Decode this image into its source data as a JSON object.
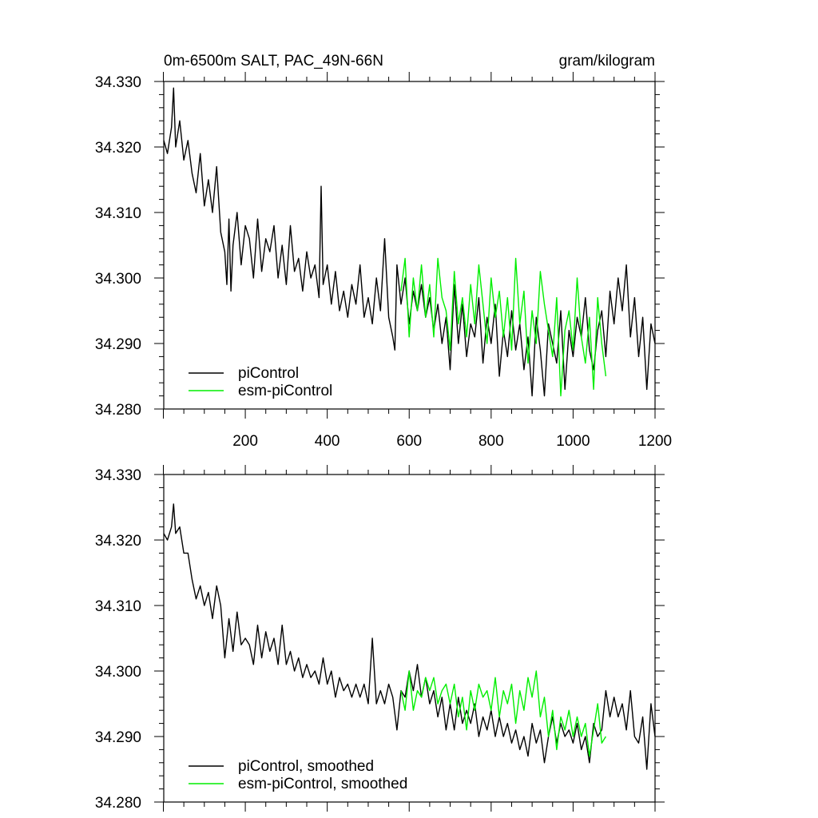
{
  "header": {
    "title": "0m-6500m SALT, PAC_49N-66N",
    "units": "gram/kilogram"
  },
  "colors": {
    "piControl": "#000000",
    "esm_piControl": "#00ee00"
  },
  "chart_data": [
    {
      "type": "line",
      "xlim": [
        1,
        1200
      ],
      "ylim": [
        34.28,
        34.33
      ],
      "xticks": [
        200,
        400,
        600,
        800,
        1000,
        1200
      ],
      "xtick_labels": [
        "200",
        "400",
        "600",
        "800",
        "1000",
        "1200"
      ],
      "yticks": [
        34.28,
        34.29,
        34.3,
        34.31,
        34.32,
        34.33
      ],
      "ytick_labels": [
        "34.280",
        "34.290",
        "34.300",
        "34.310",
        "34.320",
        "34.330"
      ],
      "legend_position": "bottom-left",
      "series": [
        {
          "name": "piControl",
          "color": "#000000",
          "x": [
            1,
            10,
            20,
            25,
            30,
            40,
            50,
            60,
            70,
            80,
            90,
            100,
            110,
            120,
            130,
            140,
            150,
            155,
            160,
            165,
            170,
            180,
            190,
            200,
            210,
            220,
            230,
            240,
            250,
            260,
            270,
            280,
            290,
            300,
            310,
            320,
            330,
            340,
            350,
            360,
            370,
            380,
            385,
            390,
            400,
            410,
            420,
            430,
            440,
            450,
            460,
            470,
            480,
            490,
            500,
            510,
            520,
            530,
            540,
            550,
            560,
            565,
            570,
            580,
            590,
            600,
            610,
            620,
            630,
            640,
            650,
            660,
            670,
            680,
            690,
            700,
            710,
            720,
            730,
            740,
            750,
            760,
            770,
            780,
            790,
            800,
            810,
            820,
            830,
            840,
            850,
            860,
            870,
            880,
            890,
            900,
            910,
            920,
            930,
            940,
            950,
            960,
            970,
            980,
            990,
            1000,
            1010,
            1020,
            1030,
            1040,
            1050,
            1060,
            1070,
            1080,
            1090,
            1100,
            1110,
            1120,
            1130,
            1140,
            1150,
            1160,
            1170,
            1180,
            1190,
            1200
          ],
          "values": [
            34.321,
            34.319,
            34.323,
            34.329,
            34.32,
            34.324,
            34.318,
            34.321,
            34.316,
            34.313,
            34.319,
            34.311,
            34.315,
            34.31,
            34.317,
            34.307,
            34.304,
            34.299,
            34.309,
            34.298,
            34.305,
            34.31,
            34.302,
            34.308,
            34.306,
            34.3,
            34.309,
            34.301,
            34.306,
            34.304,
            34.308,
            34.3,
            34.305,
            34.299,
            34.308,
            34.301,
            34.303,
            34.298,
            34.304,
            34.3,
            34.302,
            34.297,
            34.314,
            34.299,
            34.302,
            34.296,
            34.301,
            34.295,
            34.298,
            34.294,
            34.299,
            34.296,
            34.302,
            34.294,
            34.297,
            34.293,
            34.3,
            34.295,
            34.306,
            34.294,
            34.291,
            34.289,
            34.302,
            34.296,
            34.3,
            34.293,
            34.298,
            34.295,
            34.299,
            34.294,
            34.297,
            34.292,
            34.296,
            34.29,
            34.294,
            34.286,
            34.299,
            34.29,
            34.296,
            34.288,
            34.293,
            34.291,
            34.297,
            34.287,
            34.294,
            34.29,
            34.296,
            34.285,
            34.292,
            34.288,
            34.295,
            34.289,
            34.293,
            34.286,
            34.291,
            34.282,
            34.294,
            34.289,
            34.282,
            34.293,
            34.29,
            34.287,
            34.295,
            34.283,
            34.292,
            34.288,
            34.294,
            34.291,
            34.297,
            34.289,
            34.286,
            34.292,
            34.295,
            34.288,
            34.298,
            34.293,
            34.3,
            34.295,
            34.302,
            34.291,
            34.297,
            34.288,
            34.294,
            34.283,
            34.293,
            34.29
          ]
        },
        {
          "name": "esm-piControl",
          "color": "#00ee00",
          "x": [
            580,
            590,
            600,
            610,
            620,
            630,
            640,
            650,
            660,
            670,
            680,
            690,
            700,
            710,
            720,
            730,
            740,
            750,
            760,
            770,
            780,
            790,
            800,
            810,
            820,
            830,
            840,
            850,
            860,
            870,
            880,
            890,
            900,
            910,
            920,
            930,
            940,
            950,
            960,
            970,
            980,
            990,
            1000,
            1010,
            1020,
            1030,
            1040,
            1050,
            1060,
            1070,
            1080
          ],
          "values": [
            34.298,
            34.303,
            34.291,
            34.3,
            34.295,
            34.302,
            34.294,
            34.299,
            34.291,
            34.303,
            34.297,
            34.295,
            34.289,
            34.301,
            34.293,
            34.297,
            34.291,
            34.299,
            34.293,
            34.302,
            34.296,
            34.29,
            34.3,
            34.294,
            34.298,
            34.291,
            34.297,
            34.289,
            34.303,
            34.293,
            34.298,
            34.287,
            34.295,
            34.29,
            34.301,
            34.296,
            34.292,
            34.288,
            34.297,
            34.282,
            34.292,
            34.295,
            34.289,
            34.3,
            34.291,
            34.287,
            34.294,
            34.283,
            34.297,
            34.29,
            34.285
          ]
        }
      ]
    },
    {
      "type": "line",
      "xlim": [
        1,
        1200
      ],
      "ylim": [
        34.28,
        34.33
      ],
      "yticks": [
        34.28,
        34.29,
        34.3,
        34.31,
        34.32,
        34.33
      ],
      "ytick_labels": [
        "34.280",
        "34.290",
        "34.300",
        "34.310",
        "34.320",
        "34.330"
      ],
      "legend_position": "bottom-left",
      "series": [
        {
          "name": "piControl, smoothed",
          "color": "#000000",
          "x": [
            1,
            10,
            20,
            25,
            30,
            40,
            50,
            60,
            70,
            80,
            90,
            100,
            110,
            120,
            130,
            140,
            150,
            160,
            170,
            180,
            190,
            200,
            210,
            220,
            230,
            240,
            250,
            260,
            270,
            280,
            290,
            300,
            310,
            320,
            330,
            340,
            350,
            360,
            370,
            380,
            390,
            400,
            410,
            420,
            430,
            440,
            450,
            460,
            470,
            480,
            490,
            500,
            510,
            520,
            530,
            540,
            550,
            560,
            570,
            580,
            590,
            600,
            610,
            620,
            630,
            640,
            650,
            660,
            670,
            680,
            690,
            700,
            710,
            720,
            730,
            740,
            750,
            760,
            770,
            780,
            790,
            800,
            810,
            820,
            830,
            840,
            850,
            860,
            870,
            880,
            890,
            900,
            910,
            920,
            930,
            940,
            950,
            960,
            970,
            980,
            990,
            1000,
            1010,
            1020,
            1030,
            1040,
            1050,
            1060,
            1070,
            1080,
            1090,
            1100,
            1110,
            1120,
            1130,
            1140,
            1150,
            1160,
            1170,
            1180,
            1190,
            1200
          ],
          "values": [
            34.321,
            34.32,
            34.322,
            34.3255,
            34.321,
            34.322,
            34.318,
            34.318,
            34.314,
            34.311,
            34.313,
            34.31,
            34.312,
            34.308,
            34.313,
            34.31,
            34.302,
            34.308,
            34.303,
            34.309,
            34.304,
            34.305,
            34.304,
            34.301,
            34.307,
            34.302,
            34.306,
            34.303,
            34.305,
            34.301,
            34.307,
            34.301,
            34.303,
            34.3,
            34.302,
            34.299,
            34.301,
            34.299,
            34.3,
            34.298,
            34.302,
            34.298,
            34.3,
            34.296,
            34.299,
            34.297,
            34.298,
            34.296,
            34.298,
            34.296,
            34.298,
            34.295,
            34.305,
            34.295,
            34.297,
            34.295,
            34.298,
            34.296,
            34.291,
            34.297,
            34.296,
            34.3,
            34.297,
            34.301,
            34.296,
            34.299,
            34.295,
            34.297,
            34.293,
            34.296,
            34.291,
            34.295,
            34.291,
            34.296,
            34.292,
            34.294,
            34.292,
            34.295,
            34.29,
            34.293,
            34.291,
            34.294,
            34.29,
            34.293,
            34.29,
            34.292,
            34.289,
            34.291,
            34.288,
            34.29,
            34.287,
            34.292,
            34.289,
            34.291,
            34.286,
            34.29,
            34.293,
            34.289,
            34.292,
            34.29,
            34.291,
            34.289,
            34.292,
            34.288,
            34.29,
            34.286,
            34.292,
            34.29,
            34.291,
            34.297,
            34.293,
            34.296,
            34.293,
            34.295,
            34.291,
            34.297,
            34.29,
            34.289,
            34.293,
            34.285,
            34.295,
            34.29
          ]
        },
        {
          "name": "esm-piControl, smoothed",
          "color": "#00ee00",
          "x": [
            580,
            590,
            600,
            610,
            620,
            630,
            640,
            650,
            660,
            670,
            680,
            690,
            700,
            710,
            720,
            730,
            740,
            750,
            760,
            770,
            780,
            790,
            800,
            810,
            820,
            830,
            840,
            850,
            860,
            870,
            880,
            890,
            900,
            910,
            920,
            930,
            940,
            950,
            960,
            970,
            980,
            990,
            1000,
            1010,
            1020,
            1030,
            1040,
            1050,
            1060,
            1070,
            1080
          ],
          "values": [
            34.297,
            34.294,
            34.3,
            34.294,
            34.297,
            34.296,
            34.299,
            34.297,
            34.299,
            34.295,
            34.297,
            34.298,
            34.295,
            34.298,
            34.293,
            34.296,
            34.291,
            34.297,
            34.294,
            34.298,
            34.296,
            34.297,
            34.294,
            34.299,
            34.293,
            34.297,
            34.295,
            34.298,
            34.292,
            34.297,
            34.294,
            34.299,
            34.296,
            34.3,
            34.293,
            34.296,
            34.29,
            34.294,
            34.288,
            34.293,
            34.291,
            34.294,
            34.29,
            34.293,
            34.29,
            34.292,
            34.287,
            34.291,
            34.295,
            34.289,
            34.29
          ]
        }
      ]
    }
  ]
}
